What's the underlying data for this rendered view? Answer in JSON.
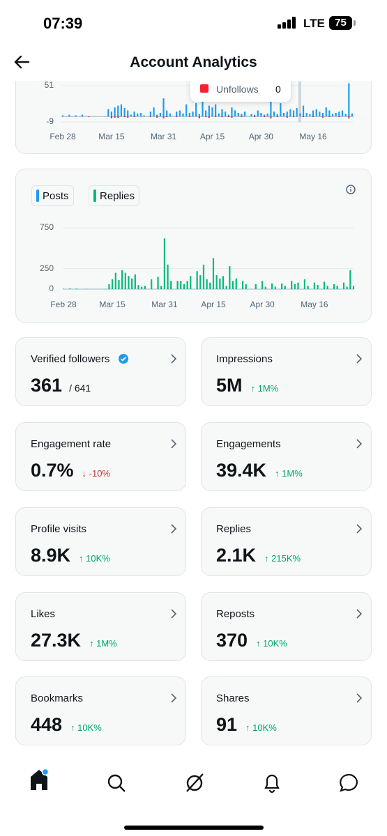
{
  "status_bar": {
    "time": "07:39",
    "network": "LTE",
    "battery": "75"
  },
  "header": {
    "title": "Account Analytics"
  },
  "chart_data": [
    {
      "type": "bar",
      "ylim": [
        -12,
        58
      ],
      "yticks": [
        -9,
        51
      ],
      "grid": true,
      "categories": [
        "Feb 28",
        null,
        null,
        null,
        null,
        null,
        null,
        null,
        null,
        null,
        null,
        null,
        null,
        null,
        null,
        "Mar 15",
        null,
        null,
        null,
        null,
        null,
        null,
        null,
        null,
        null,
        null,
        null,
        null,
        null,
        null,
        null,
        "Mar 31",
        null,
        null,
        null,
        null,
        null,
        null,
        null,
        null,
        null,
        null,
        null,
        null,
        null,
        null,
        "Apr 15",
        null,
        null,
        null,
        null,
        null,
        null,
        null,
        null,
        null,
        null,
        null,
        null,
        null,
        null,
        "Apr 30",
        null,
        null,
        null,
        null,
        null,
        null,
        null,
        null,
        null,
        null,
        null,
        null,
        null,
        null,
        null,
        "May 16",
        null,
        null,
        null,
        null,
        null,
        null,
        null,
        null,
        null,
        null,
        null,
        null
      ],
      "series": [
        {
          "color": "#1d9bf0",
          "values": [
            2,
            0,
            3,
            0,
            2,
            0,
            3,
            0,
            0,
            0,
            0,
            0,
            0,
            0,
            12,
            8,
            15,
            18,
            20,
            14,
            10,
            3,
            8,
            5,
            6,
            2,
            0,
            8,
            15,
            3,
            6,
            30,
            10,
            5,
            0,
            8,
            10,
            5,
            20,
            6,
            8,
            22,
            4,
            25,
            10,
            18,
            15,
            20,
            5,
            12,
            8,
            3,
            15,
            10,
            6,
            4,
            8,
            0,
            4,
            3,
            10,
            6,
            3,
            5,
            30,
            8,
            4,
            22,
            6,
            8,
            12,
            10,
            14,
            5,
            18,
            6,
            4,
            10,
            12,
            8,
            6,
            15,
            10,
            4,
            6,
            8,
            10,
            4,
            55,
            5
          ]
        },
        {
          "name": "Unfollows",
          "color": "#f4212e",
          "values": [
            0,
            0,
            0,
            0,
            0,
            0,
            0,
            0,
            -1,
            0,
            0,
            0,
            0,
            0,
            0,
            -3,
            -2,
            -2,
            0,
            -1,
            -2,
            0,
            -1,
            0,
            0,
            0,
            0,
            -1,
            0,
            -2,
            0,
            -3,
            -1,
            0,
            0,
            -1,
            0,
            0,
            0,
            -1,
            0,
            0,
            -3,
            0,
            -1,
            -2,
            0,
            -1,
            0,
            -1,
            0,
            -1,
            -2,
            0,
            0,
            -1,
            0,
            0,
            0,
            -1,
            0,
            0,
            -1,
            0,
            -3,
            0,
            -1,
            0,
            0,
            -2,
            0,
            -1,
            0,
            0,
            -1,
            0,
            0,
            -1,
            0,
            0,
            -2,
            0,
            -1,
            0,
            0,
            -1,
            0,
            0,
            -3,
            0
          ]
        }
      ],
      "tooltip_value": 0
    },
    {
      "type": "bar",
      "ylim": [
        0,
        750
      ],
      "yticks": [
        0,
        250,
        750
      ],
      "grid": true,
      "categories": [
        "Feb 28",
        null,
        null,
        null,
        null,
        null,
        null,
        null,
        null,
        null,
        null,
        null,
        null,
        null,
        null,
        "Mar 15",
        null,
        null,
        null,
        null,
        null,
        null,
        null,
        null,
        null,
        null,
        null,
        null,
        null,
        null,
        null,
        "Mar 31",
        null,
        null,
        null,
        null,
        null,
        null,
        null,
        null,
        null,
        null,
        null,
        null,
        null,
        null,
        "Apr 15",
        null,
        null,
        null,
        null,
        null,
        null,
        null,
        null,
        null,
        null,
        null,
        null,
        null,
        null,
        "Apr 30",
        null,
        null,
        null,
        null,
        null,
        null,
        null,
        null,
        null,
        null,
        null,
        null,
        null,
        null,
        null,
        "May 16",
        null,
        null,
        null,
        null,
        null,
        null,
        null,
        null,
        null,
        null,
        null,
        null
      ],
      "series": [
        {
          "name": "Posts",
          "color": "#1d9bf0",
          "values": [
            0,
            0,
            0,
            0,
            0,
            0,
            0,
            0,
            0,
            0,
            0,
            0,
            0,
            0,
            0,
            0,
            0,
            0,
            0,
            0,
            0,
            0,
            0,
            0,
            0,
            0,
            0,
            0,
            0,
            0,
            0,
            0,
            0,
            0,
            0,
            0,
            0,
            0,
            0,
            0,
            0,
            0,
            0,
            0,
            0,
            0,
            0,
            0,
            0,
            0,
            0,
            0,
            0,
            0,
            0,
            0,
            0,
            0,
            0,
            0,
            0,
            0,
            0,
            0,
            0,
            0,
            0,
            0,
            0,
            0,
            0,
            0,
            0,
            0,
            0,
            0,
            0,
            0,
            0,
            0,
            0,
            0,
            0,
            0,
            0,
            0,
            0,
            0,
            0,
            0
          ]
        },
        {
          "name": "Replies",
          "color": "#00ba7c",
          "values": [
            5,
            0,
            8,
            0,
            6,
            0,
            0,
            4,
            0,
            0,
            0,
            0,
            0,
            3,
            60,
            120,
            200,
            110,
            230,
            200,
            160,
            130,
            180,
            50,
            30,
            40,
            0,
            120,
            0,
            150,
            40,
            620,
            300,
            100,
            0,
            100,
            100,
            60,
            100,
            160,
            0,
            220,
            170,
            300,
            120,
            80,
            380,
            170,
            130,
            160,
            40,
            280,
            100,
            130,
            0,
            100,
            60,
            0,
            0,
            60,
            0,
            100,
            30,
            0,
            70,
            30,
            0,
            70,
            40,
            0,
            100,
            60,
            80,
            0,
            120,
            40,
            0,
            80,
            50,
            0,
            90,
            40,
            0,
            60,
            40,
            0,
            80,
            30,
            230,
            40
          ]
        }
      ]
    }
  ],
  "cards": [
    {
      "title": "Verified followers",
      "verified": true,
      "value": "361",
      "total": "/ 641"
    },
    {
      "title": "Impressions",
      "value": "5M",
      "change": "↑ 1M%"
    },
    {
      "title": "Engagement rate",
      "value": "0.7%",
      "change": "↓ -10%"
    },
    {
      "title": "Engagements",
      "value": "39.4K",
      "change": "↑ 1M%"
    },
    {
      "title": "Profile visits",
      "value": "8.9K",
      "change": "↑ 10K%"
    },
    {
      "title": "Replies",
      "value": "2.1K",
      "change": "↑ 215K%"
    },
    {
      "title": "Likes",
      "value": "27.3K",
      "change": "↑ 1M%"
    },
    {
      "title": "Reposts",
      "value": "370",
      "change": "↑ 10K%"
    },
    {
      "title": "Bookmarks",
      "value": "448",
      "change": "↑ 10K%"
    },
    {
      "title": "Shares",
      "value": "91",
      "change": "↑ 10K%"
    }
  ]
}
